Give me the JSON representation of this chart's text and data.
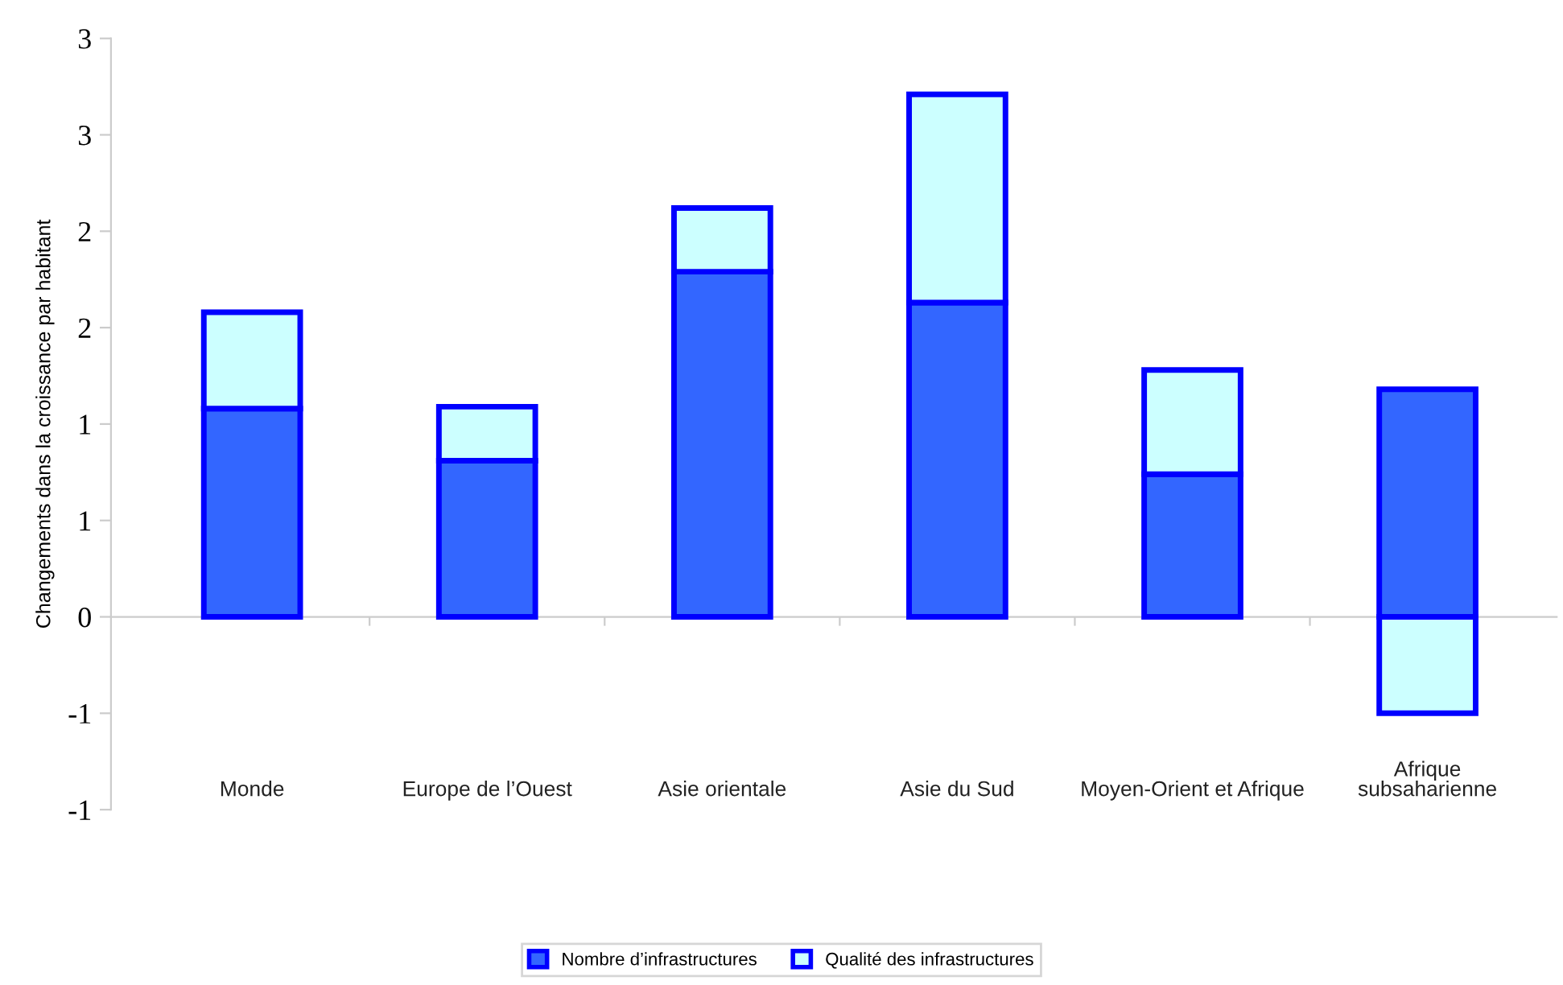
{
  "chart_data": {
    "type": "bar",
    "stacked": true,
    "ylabel": "Changements dans la croissance par habitant",
    "categories": [
      "Monde",
      "Europe de l’Ouest",
      "Asie orientale",
      "Asie du Sud",
      "Moyen-Orient et Afrique",
      "Afrique\nsubsaharienne"
    ],
    "series": [
      {
        "name": "Nombre d’infrastructures",
        "color": "#3366ff",
        "values": [
          1.08,
          0.81,
          1.79,
          1.63,
          0.74,
          1.18
        ]
      },
      {
        "name": "Qualité des infrastructures",
        "color": "#ccffff",
        "values": [
          0.5,
          0.28,
          0.33,
          1.08,
          0.54,
          -0.5
        ]
      }
    ],
    "ylim": [
      -1.0,
      3.0
    ],
    "yticks": [
      {
        "value": -1.0,
        "label": "-1"
      },
      {
        "value": -0.5,
        "label": "-1"
      },
      {
        "value": 0,
        "label": "0"
      },
      {
        "value": 0.5,
        "label": "1"
      },
      {
        "value": 1.0,
        "label": "1"
      },
      {
        "value": 1.5,
        "label": "2"
      },
      {
        "value": 2.0,
        "label": "2"
      },
      {
        "value": 2.5,
        "label": "3"
      },
      {
        "value": 3.0,
        "label": "3"
      }
    ],
    "legend": "bottom"
  }
}
